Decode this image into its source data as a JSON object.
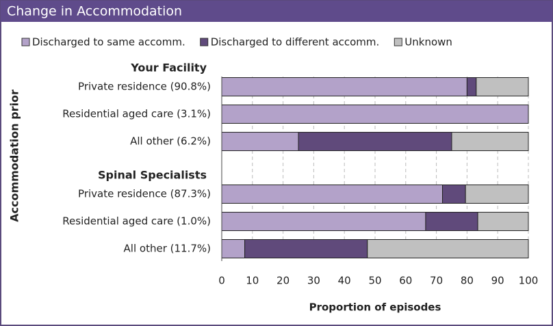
{
  "chart_data": {
    "type": "stacked-barh",
    "title": "Change in Accommodation",
    "groups": [
      "Your Facility",
      "Spinal Specialists"
    ],
    "categories": [
      [
        "Private residence (90.8%)",
        "Residential aged care (3.1%)",
        "All other (6.2%)"
      ],
      [
        "Private residence (87.3%)",
        "Residential aged care (1.0%)",
        "All other (11.7%)"
      ]
    ],
    "series": [
      {
        "name": "Discharged to same accomm.",
        "color": "#b3a2c9",
        "values": [
          [
            80,
            100,
            25
          ],
          [
            72,
            66.5,
            7.5
          ]
        ]
      },
      {
        "name": "Discharged to different accomm.",
        "color": "#604a7b",
        "values": [
          [
            3,
            0,
            50
          ],
          [
            7.5,
            17,
            40
          ]
        ]
      },
      {
        "name": "Unknown",
        "color": "#c0c0c0",
        "values": [
          [
            17,
            0,
            25
          ],
          [
            20.5,
            16.5,
            52.5
          ]
        ]
      }
    ],
    "xlabel": "Proportion of episodes",
    "ylabel": "Accommodation prior",
    "xlim": [
      0,
      100
    ],
    "xticks": [
      0,
      10,
      20,
      30,
      40,
      50,
      60,
      70,
      80,
      90,
      100
    ],
    "grid": true
  }
}
